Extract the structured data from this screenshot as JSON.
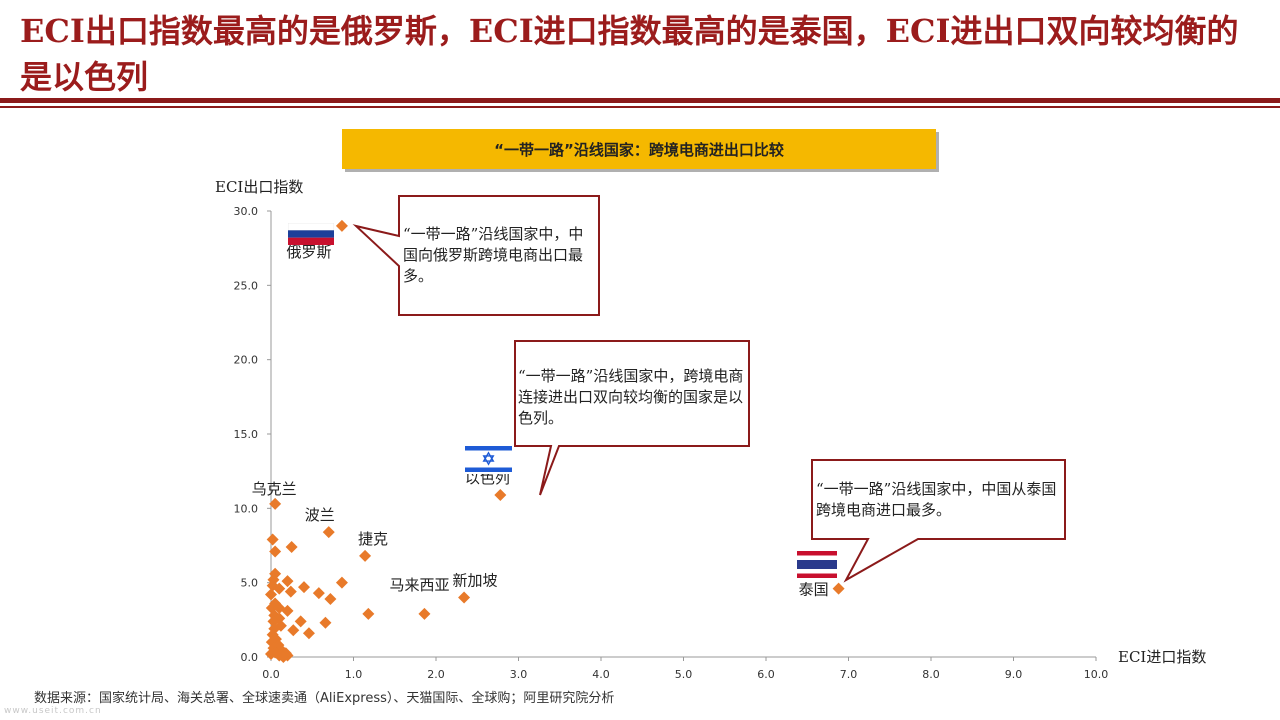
{
  "slide": {
    "title": "ECI出口指数最高的是俄罗斯，ECI进口指数最高的是泰国，ECI进出口双向较均衡的是以色列"
  },
  "chart_data": {
    "type": "scatter",
    "title": "“一带一路”沿线国家：跨境电商进出口比较",
    "xlabel": "ECI进口指数",
    "ylabel": "ECI出口指数",
    "xlim": [
      0,
      10
    ],
    "ylim": [
      0,
      30
    ],
    "xticks": [
      "0.0",
      "1.0",
      "2.0",
      "3.0",
      "4.0",
      "5.0",
      "6.0",
      "7.0",
      "8.0",
      "9.0",
      "10.0"
    ],
    "yticks": [
      "0.0",
      "5.0",
      "10.0",
      "15.0",
      "20.0",
      "25.0",
      "30.0"
    ],
    "grid": false,
    "marker": "diamond",
    "marker_color": "#e87a2a",
    "labeled_points": [
      {
        "label": "俄罗斯",
        "x": 0.86,
        "y": 29.0
      },
      {
        "label": "以色列",
        "x": 2.78,
        "y": 10.9
      },
      {
        "label": "泰国",
        "x": 6.88,
        "y": 4.6
      },
      {
        "label": "乌克兰",
        "x": 0.05,
        "y": 10.3
      },
      {
        "label": "波兰",
        "x": 0.7,
        "y": 8.4
      },
      {
        "label": "捷克",
        "x": 1.14,
        "y": 6.8
      },
      {
        "label": "新加坡",
        "x": 2.34,
        "y": 4.0
      },
      {
        "label": "马来西亚",
        "x": 1.86,
        "y": 2.9
      }
    ],
    "points": [
      {
        "x": 0.02,
        "y": 7.9
      },
      {
        "x": 0.05,
        "y": 7.1
      },
      {
        "x": 0.25,
        "y": 7.4
      },
      {
        "x": 0.05,
        "y": 5.6
      },
      {
        "x": 0.03,
        "y": 5.2
      },
      {
        "x": 0.2,
        "y": 5.1
      },
      {
        "x": 0.86,
        "y": 5.0
      },
      {
        "x": 0.02,
        "y": 4.8
      },
      {
        "x": 0.1,
        "y": 4.6
      },
      {
        "x": 0.4,
        "y": 4.7
      },
      {
        "x": 0.24,
        "y": 4.4
      },
      {
        "x": 0.58,
        "y": 4.3
      },
      {
        "x": 0.0,
        "y": 4.2
      },
      {
        "x": 0.72,
        "y": 3.9
      },
      {
        "x": 0.05,
        "y": 3.6
      },
      {
        "x": 0.01,
        "y": 3.3
      },
      {
        "x": 0.1,
        "y": 3.3
      },
      {
        "x": 0.2,
        "y": 3.1
      },
      {
        "x": 1.18,
        "y": 2.9
      },
      {
        "x": 0.04,
        "y": 2.8
      },
      {
        "x": 0.1,
        "y": 2.6
      },
      {
        "x": 0.03,
        "y": 2.4
      },
      {
        "x": 0.36,
        "y": 2.4
      },
      {
        "x": 0.66,
        "y": 2.3
      },
      {
        "x": 0.12,
        "y": 2.1
      },
      {
        "x": 0.04,
        "y": 1.9
      },
      {
        "x": 0.27,
        "y": 1.8
      },
      {
        "x": 0.46,
        "y": 1.6
      },
      {
        "x": 0.02,
        "y": 1.5
      },
      {
        "x": 0.06,
        "y": 1.2
      },
      {
        "x": 0.01,
        "y": 1.0
      },
      {
        "x": 0.09,
        "y": 0.8
      },
      {
        "x": 0.03,
        "y": 0.6
      },
      {
        "x": 0.12,
        "y": 0.5
      },
      {
        "x": 0.05,
        "y": 0.3
      },
      {
        "x": 0.18,
        "y": 0.25
      },
      {
        "x": 0.0,
        "y": 0.2
      },
      {
        "x": 0.1,
        "y": 0.1
      },
      {
        "x": 0.2,
        "y": 0.1
      },
      {
        "x": 0.15,
        "y": 0.0
      }
    ],
    "annotations": {
      "russia": "“一带一路”沿线国家中，中国向俄罗斯跨境电商出口最多。",
      "israel": "“一带一路”沿线国家中，跨境电商连接进出口双向较均衡的国家是以色列。",
      "thailand": "“一带一路”沿线国家中，中国从泰国跨境电商进口最多。"
    },
    "callout_border_color": "#8b1a1a"
  },
  "footer": {
    "source": "数据来源：国家统计局、海关总署、全球速卖通（AliExpress）、天猫国际、全球购；阿里研究院分析",
    "watermark": "www.useit.com.cn"
  },
  "colors": {
    "title": "#9b1c1c",
    "rule": "#8b1a1a",
    "banner": "#f5b800",
    "marker": "#e87a2a"
  }
}
